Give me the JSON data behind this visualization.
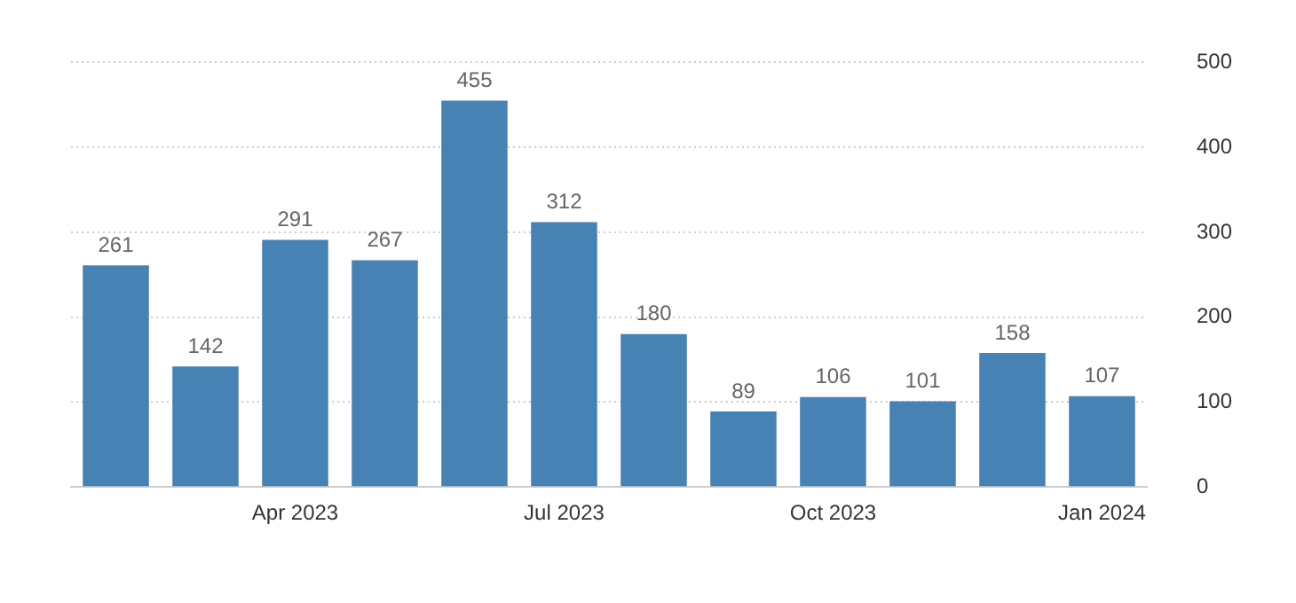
{
  "chart_data": {
    "type": "bar",
    "categories": [
      null,
      null,
      "Apr 2023",
      null,
      null,
      "Jul 2023",
      null,
      null,
      "Oct 2023",
      null,
      null,
      "Jan 2024"
    ],
    "values": [
      261,
      142,
      291,
      267,
      455,
      312,
      180,
      89,
      106,
      101,
      158,
      107
    ],
    "color": "#4682b4",
    "ylim": [
      0,
      500
    ],
    "yticks": [
      0,
      100,
      200,
      300,
      400,
      500
    ],
    "grid": "y",
    "legend": false,
    "data_labels": true
  }
}
